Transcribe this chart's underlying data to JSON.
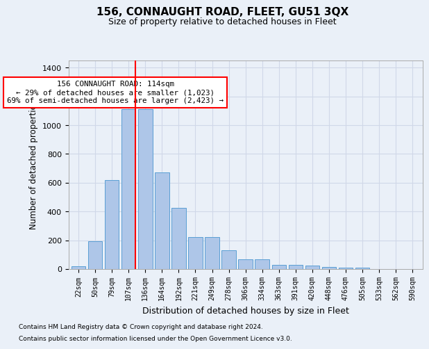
{
  "title": "156, CONNAUGHT ROAD, FLEET, GU51 3QX",
  "subtitle": "Size of property relative to detached houses in Fleet",
  "xlabel": "Distribution of detached houses by size in Fleet",
  "ylabel": "Number of detached properties",
  "footer_line1": "Contains HM Land Registry data © Crown copyright and database right 2024.",
  "footer_line2": "Contains public sector information licensed under the Open Government Licence v3.0.",
  "bin_labels": [
    "22sqm",
    "50sqm",
    "79sqm",
    "107sqm",
    "136sqm",
    "164sqm",
    "192sqm",
    "221sqm",
    "249sqm",
    "278sqm",
    "306sqm",
    "334sqm",
    "363sqm",
    "391sqm",
    "420sqm",
    "448sqm",
    "476sqm",
    "505sqm",
    "533sqm",
    "562sqm",
    "590sqm"
  ],
  "bar_values": [
    20,
    195,
    620,
    1110,
    1110,
    670,
    425,
    220,
    220,
    130,
    70,
    70,
    30,
    30,
    25,
    15,
    10,
    10,
    0,
    0,
    0
  ],
  "bar_color": "#aec6e8",
  "bar_edge_color": "#5a9fd4",
  "grid_color": "#d0d8e8",
  "bg_color": "#eaf0f8",
  "vline_color": "red",
  "vline_x_index": 3,
  "annotation_text": "156 CONNAUGHT ROAD: 114sqm\n← 29% of detached houses are smaller (1,023)\n69% of semi-detached houses are larger (2,423) →",
  "annotation_box_color": "white",
  "annotation_box_edge": "red",
  "ylim": [
    0,
    1450
  ],
  "yticks": [
    0,
    200,
    400,
    600,
    800,
    1000,
    1200,
    1400
  ]
}
